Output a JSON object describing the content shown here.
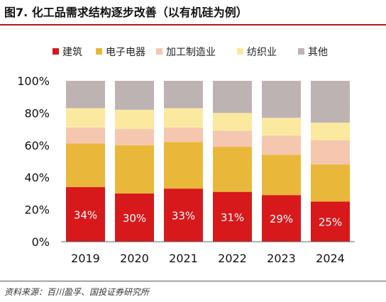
{
  "figure_title": "图7. 化工品需求结构逐步改善（以有机硅为例）",
  "source_note": "资料来源：百川盈孚、国投证券研究所",
  "colors": [
    "#d7191c",
    "#e9b83a",
    "#f5c7ae",
    "#fce9a0",
    "#beb3b3"
  ],
  "chart_data": {
    "type": "bar",
    "stacked": true,
    "percent": true,
    "categories": [
      "2019",
      "2020",
      "2021",
      "2022",
      "2023",
      "2024"
    ],
    "series": [
      {
        "name": "建筑",
        "values": [
          34,
          30,
          33,
          31,
          29,
          25
        ]
      },
      {
        "name": "电子电器",
        "values": [
          27,
          30,
          29,
          28,
          25,
          23
        ]
      },
      {
        "name": "加工制造业",
        "values": [
          10,
          10,
          9,
          10,
          12,
          15
        ]
      },
      {
        "name": "纺织业",
        "values": [
          12,
          12,
          12,
          11,
          11,
          11
        ]
      },
      {
        "name": "其他",
        "values": [
          17,
          18,
          17,
          20,
          23,
          26
        ]
      }
    ],
    "data_labels": [
      "34%",
      "30%",
      "33%",
      "31%",
      "29%",
      "25%"
    ],
    "yticks": [
      "0%",
      "20%",
      "40%",
      "60%",
      "80%",
      "100%"
    ],
    "ylim": [
      0,
      100
    ],
    "legend_position": "top",
    "grid": false
  }
}
